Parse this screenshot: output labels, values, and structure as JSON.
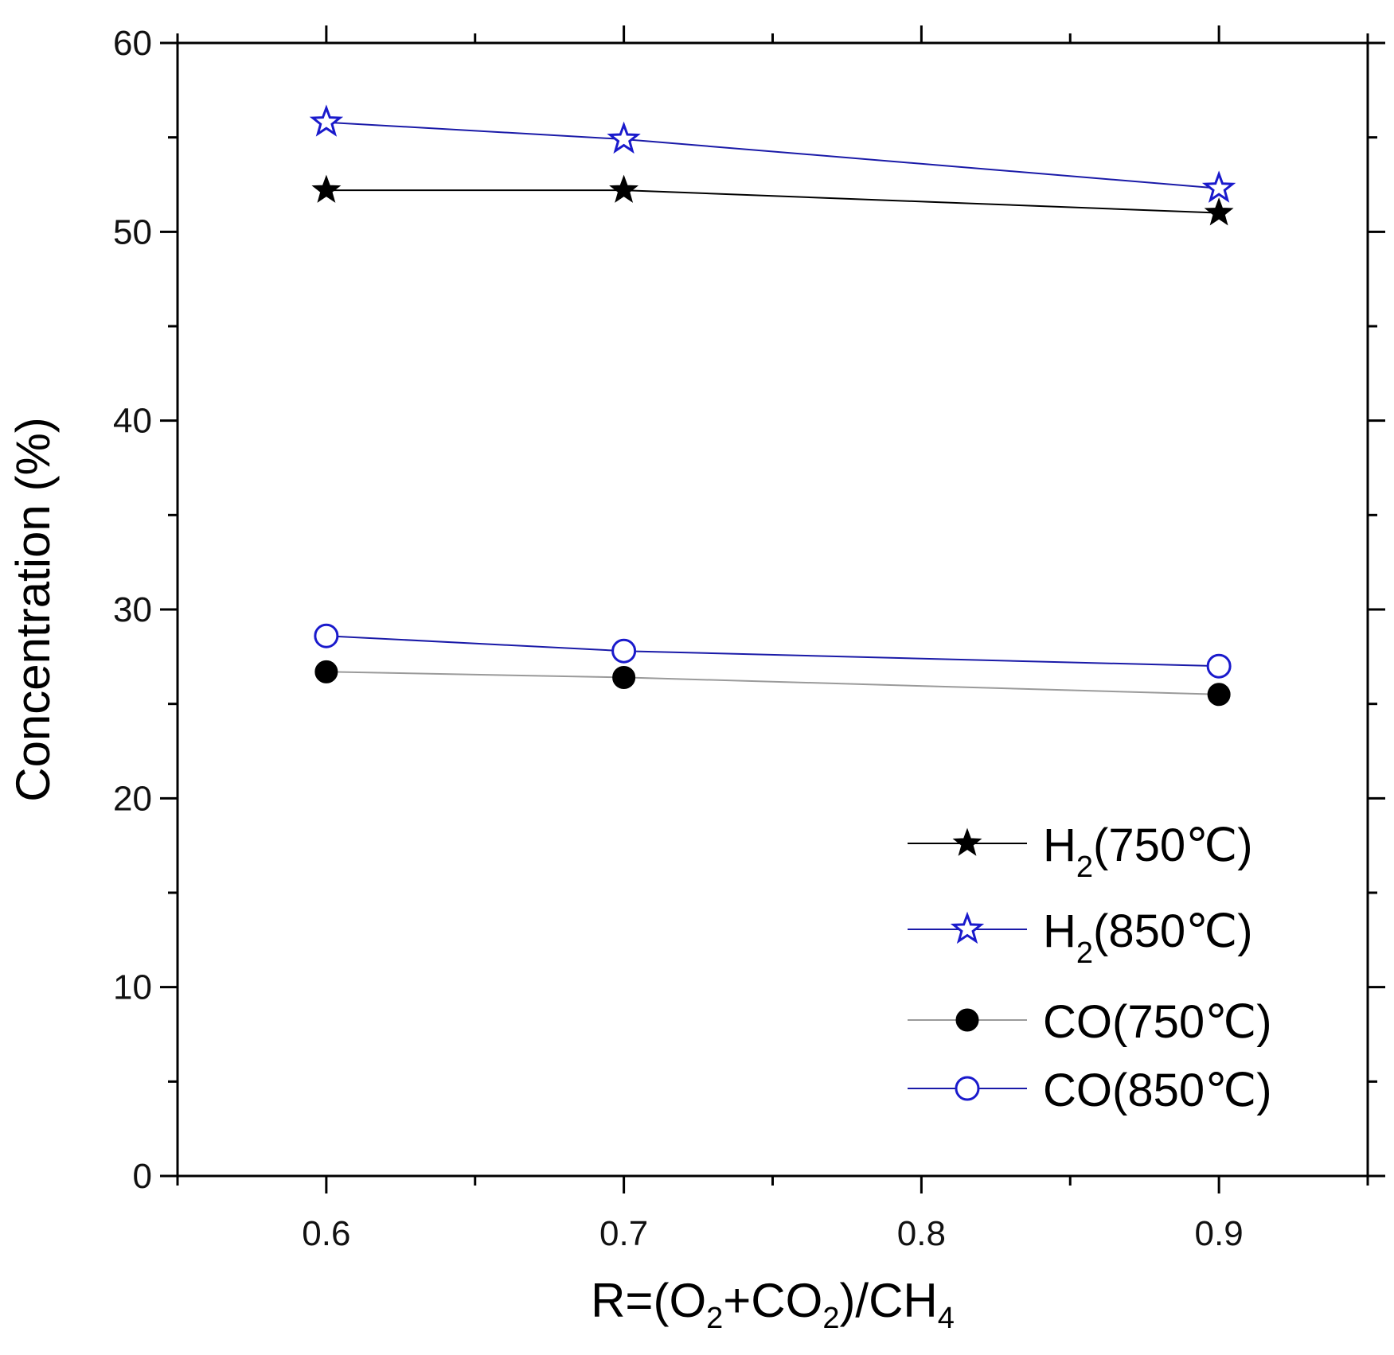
{
  "chart_data": {
    "type": "line",
    "title": "",
    "xlabel": {
      "base": "R=(O",
      "sub1": "2",
      "mid": "+CO",
      "sub2": "2",
      "mid2": ")/CH",
      "sub3": "4"
    },
    "ylabel": "Concentration (%)",
    "xlim": [
      0.55,
      0.95
    ],
    "ylim": [
      0,
      60
    ],
    "xticks": [
      0.6,
      0.7,
      0.8,
      0.9
    ],
    "xtick_labels": [
      "0.6",
      "0.7",
      "0.8",
      "0.9"
    ],
    "yticks": [
      0,
      10,
      20,
      30,
      40,
      50,
      60
    ],
    "ytick_labels": [
      "0",
      "10",
      "20",
      "30",
      "40",
      "50",
      "60"
    ],
    "grid": false,
    "legend_position": "bottom-right",
    "x": [
      0.6,
      0.7,
      0.9
    ],
    "series": [
      {
        "name": "H2(750℃)",
        "label_base": "H",
        "label_sub": "2",
        "label_rest": "(750℃)",
        "marker": "star-filled",
        "line_color": "#000000",
        "marker_color": "#000000",
        "values": [
          52.2,
          52.2,
          51.0
        ]
      },
      {
        "name": "H2(850℃)",
        "label_base": "H",
        "label_sub": "2",
        "label_rest": "(850℃)",
        "marker": "star-open",
        "line_color": "#1a1aa8",
        "marker_color": "#1a1acc",
        "values": [
          55.8,
          54.9,
          52.3
        ]
      },
      {
        "name": "CO(750℃)",
        "label_base": "CO(750℃)",
        "label_sub": "",
        "label_rest": "",
        "marker": "circle-filled",
        "line_color": "#9a9a9a",
        "marker_color": "#000000",
        "values": [
          26.7,
          26.4,
          25.5
        ]
      },
      {
        "name": "CO(850℃)",
        "label_base": "CO(850℃)",
        "label_sub": "",
        "label_rest": "",
        "marker": "circle-open",
        "line_color": "#1a1aa8",
        "marker_color": "#1a1acc",
        "values": [
          28.6,
          27.8,
          27.0
        ]
      }
    ]
  }
}
